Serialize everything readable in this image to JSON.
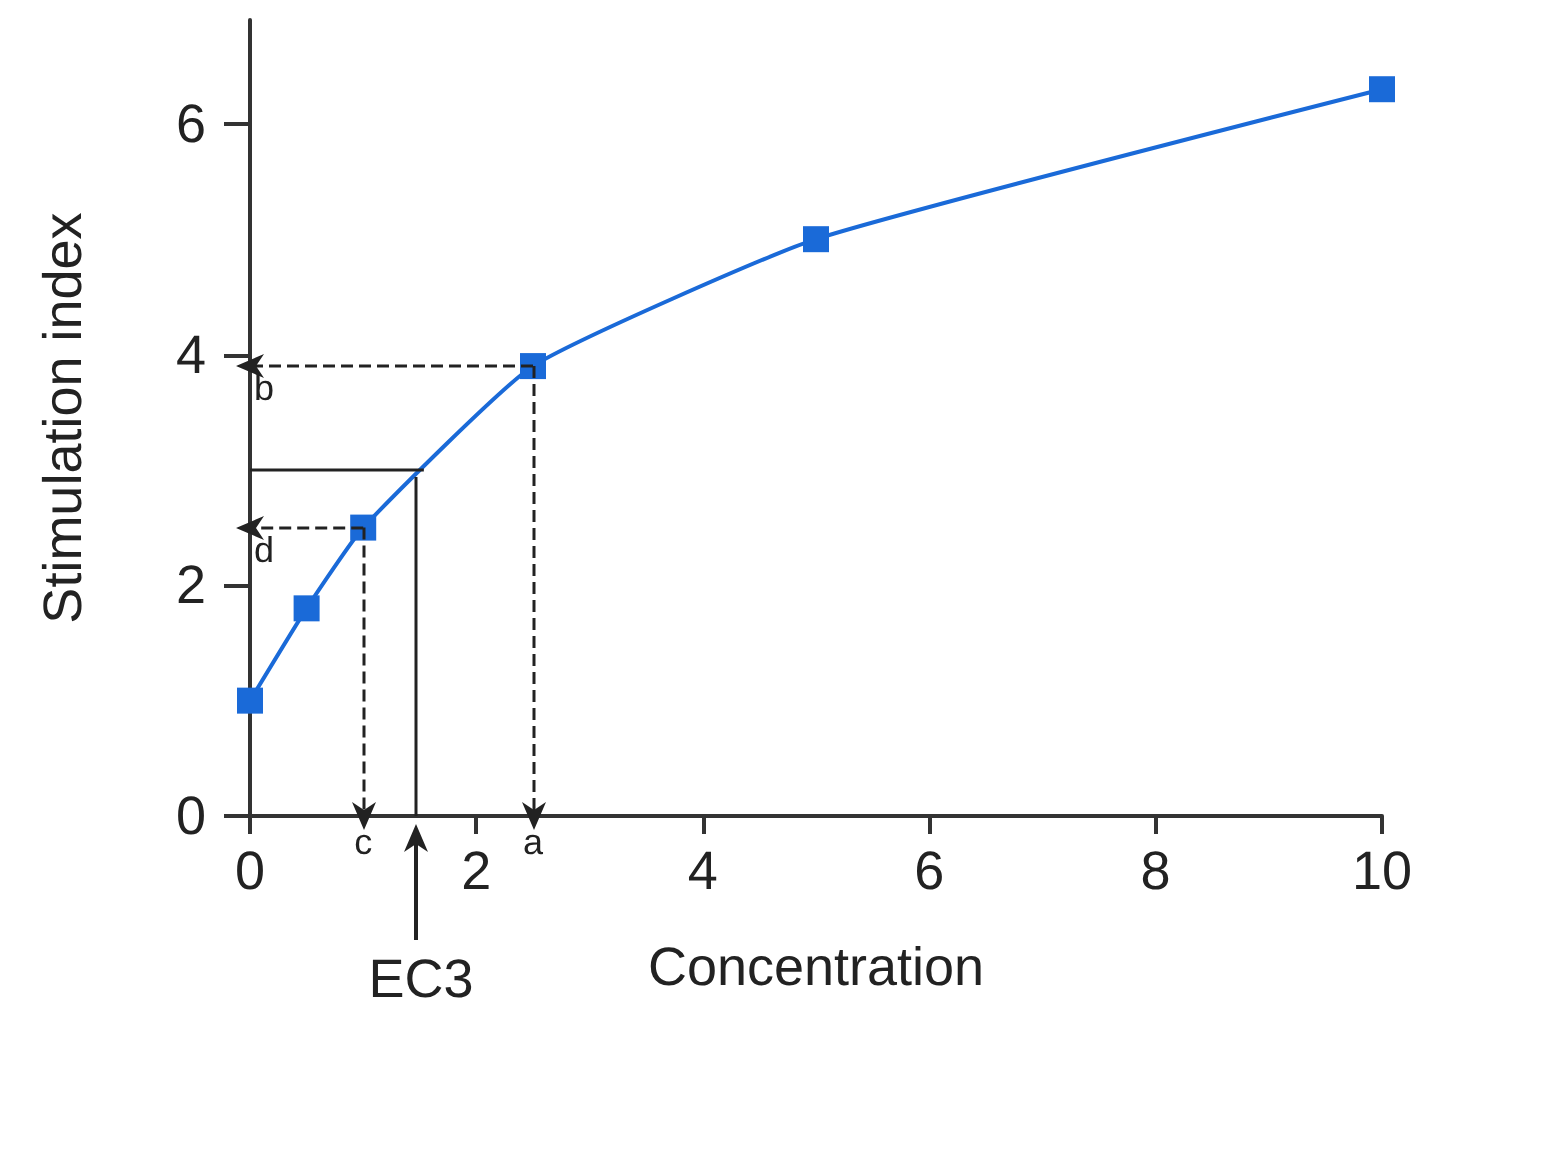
{
  "chart_data": {
    "type": "line",
    "xlabel": "Concentration",
    "ylabel": "Stimulation index",
    "x": [
      0,
      0.5,
      1,
      2.5,
      5,
      10
    ],
    "series": [
      {
        "color": "#1a6ad8",
        "values": [
          1,
          1.8,
          2.5,
          3.9,
          5,
          6.3
        ]
      }
    ],
    "xlim": [
      0,
      10
    ],
    "xticks": [
      0,
      2,
      4,
      6,
      8,
      10
    ],
    "ylim": [
      0,
      6.9
    ],
    "yticks": [
      0,
      2,
      4,
      6
    ],
    "marker": "square",
    "grid": false,
    "ref_lines": [
      {
        "axis": "x",
        "value": 2.5,
        "label": "a",
        "line_style": "dashed"
      },
      {
        "axis": "y",
        "value": 3.9,
        "label": "b",
        "line_style": "dashed"
      },
      {
        "axis": "x",
        "value": 1,
        "label": "c",
        "line_style": "dashed"
      },
      {
        "axis": "y",
        "value": 2.5,
        "label": "d",
        "line_style": "dashed"
      },
      {
        "axis": "x",
        "value": 1.47,
        "label": "EC3",
        "line_style": "solid"
      },
      {
        "axis": "y",
        "value": 3,
        "label": null,
        "line_style": "solid"
      }
    ]
  }
}
